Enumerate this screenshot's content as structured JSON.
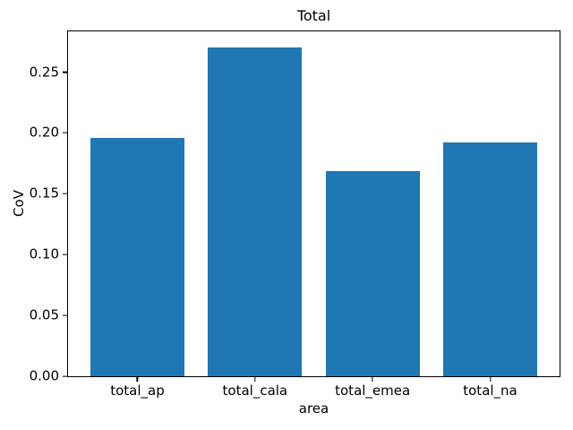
{
  "chart_data": {
    "type": "bar",
    "title": "Total",
    "xlabel": "area",
    "ylabel": "CoV",
    "categories": [
      "total_ap",
      "total_cala",
      "total_emea",
      "total_na"
    ],
    "values": [
      0.196,
      0.27,
      0.169,
      0.192
    ],
    "yticks": [
      0.0,
      0.05,
      0.1,
      0.15,
      0.2,
      0.25
    ],
    "ytick_labels": [
      "0.00",
      "0.05",
      "0.10",
      "0.15",
      "0.20",
      "0.25"
    ],
    "ylim": [
      0,
      0.2835
    ],
    "xlim": [
      -0.59,
      3.59
    ],
    "bar_width": 0.8,
    "bar_color": "#1f77b4",
    "background_color": "#ffffff",
    "spine_color": "#000000",
    "text_color": "#000000",
    "grid": false,
    "legend": "none"
  }
}
